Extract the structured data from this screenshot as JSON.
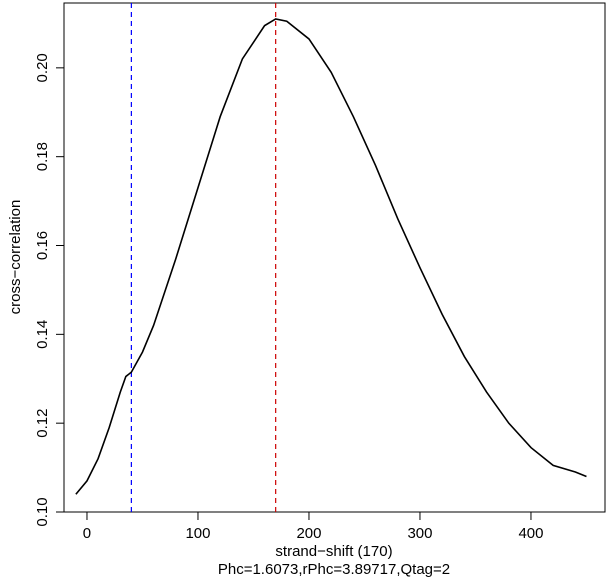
{
  "chart_data": {
    "type": "line",
    "xlabel": "strand−shift (170)",
    "subtitle": "Phc=1.6073,rPhc=3.89717,Qtag=2",
    "ylabel": "cross−correlation",
    "x": [
      -10,
      0,
      10,
      20,
      30,
      35,
      40,
      50,
      60,
      80,
      100,
      120,
      140,
      160,
      170,
      180,
      200,
      220,
      240,
      260,
      280,
      300,
      320,
      340,
      360,
      380,
      400,
      420,
      440,
      450
    ],
    "series": [
      {
        "name": "cross-correlation",
        "color": "#000000",
        "values": [
          0.104,
          0.107,
          0.112,
          0.119,
          0.127,
          0.1305,
          0.1315,
          0.136,
          0.142,
          0.157,
          0.173,
          0.189,
          0.202,
          0.2095,
          0.211,
          0.2105,
          0.2065,
          0.199,
          0.189,
          0.178,
          0.166,
          0.155,
          0.1445,
          0.135,
          0.127,
          0.12,
          0.1145,
          0.1105,
          0.109,
          0.108
        ]
      }
    ],
    "vlines": [
      {
        "x": 40,
        "color": "#0000ff"
      },
      {
        "x": 170,
        "color": "#cc0000"
      }
    ],
    "xlim": [
      -20.7,
      466.7
    ],
    "ylim": [
      0.1,
      0.2146
    ],
    "xticks": [
      0,
      100,
      200,
      300,
      400
    ],
    "yticks": [
      {
        "value": 0.1,
        "label": "0.10"
      },
      0.12,
      0.14,
      0.16,
      0.18,
      {
        "value": 0.2,
        "label": "0.20"
      }
    ]
  }
}
